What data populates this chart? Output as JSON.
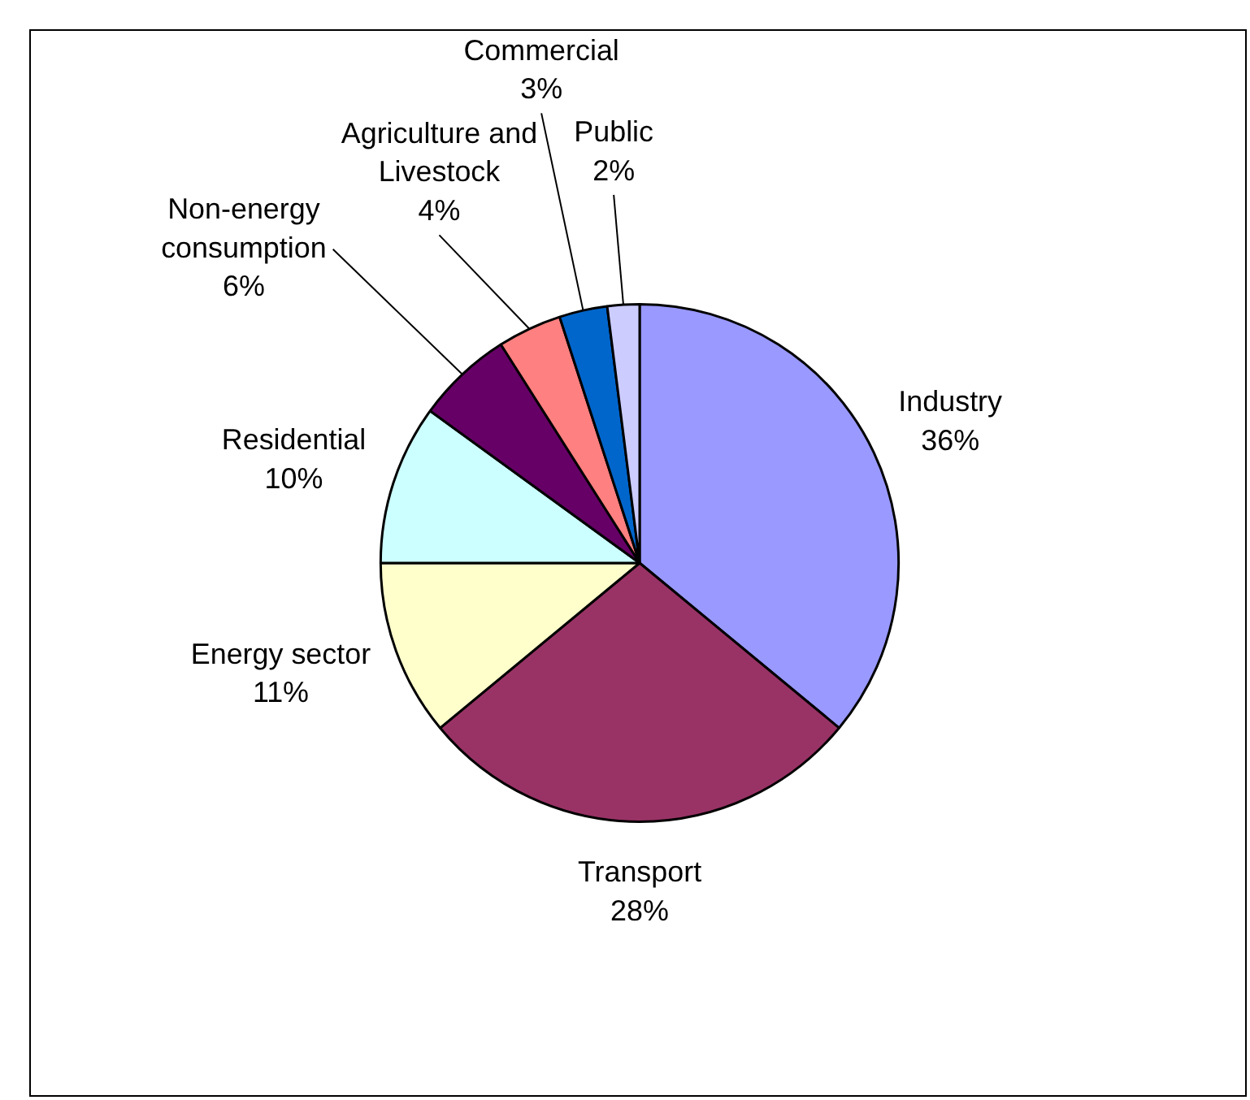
{
  "chart_data": {
    "type": "pie",
    "categories": [
      "Industry",
      "Transport",
      "Energy sector",
      "Residential",
      "Non-energy consumption",
      "Agriculture and Livestock",
      "Commercial",
      "Public"
    ],
    "values": [
      36,
      28,
      11,
      10,
      6,
      4,
      3,
      2
    ],
    "value_labels": [
      "36%",
      "28%",
      "11%",
      "10%",
      "6%",
      "4%",
      "3%",
      "2%"
    ],
    "colors": [
      "#9999ff",
      "#993366",
      "#ffffcc",
      "#ccffff",
      "#660066",
      "#ff8080",
      "#0066cc",
      "#ccccff"
    ],
    "legend": false
  }
}
